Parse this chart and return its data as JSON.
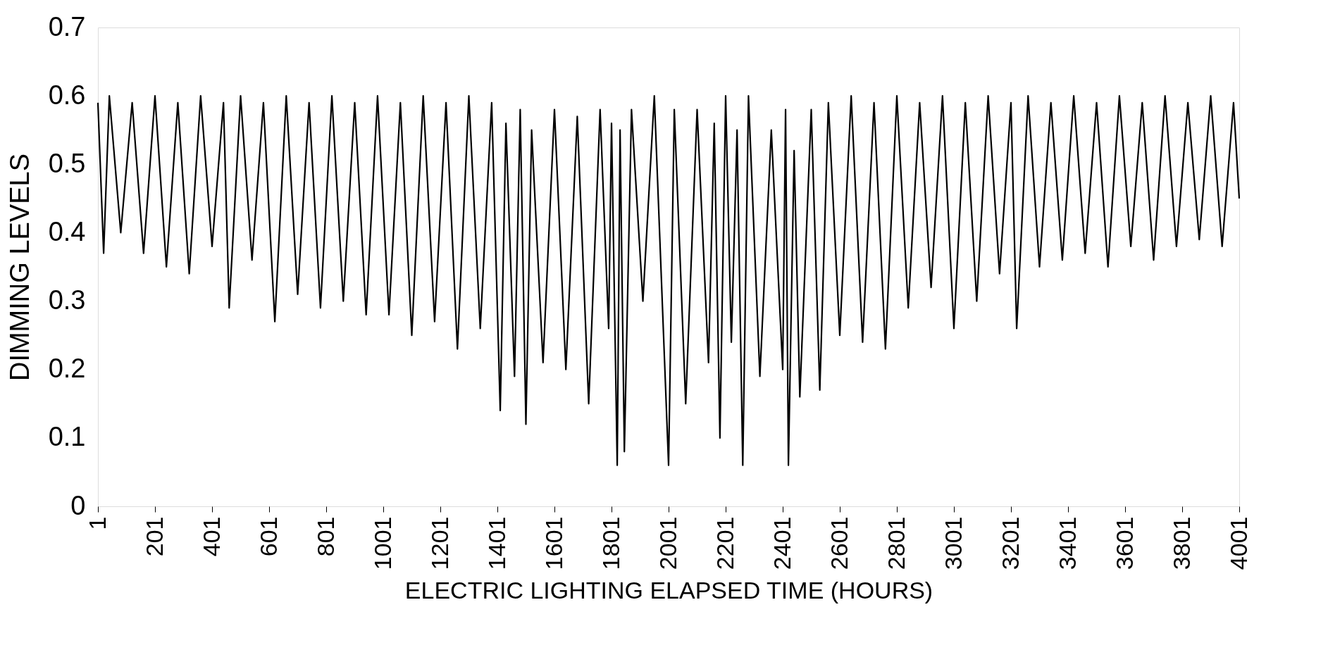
{
  "chart_data": {
    "type": "line",
    "xlabel": "ELECTRIC LIGHTING ELAPSED TIME (HOURS)",
    "ylabel": "DIMMING LEVELS",
    "xlim": [
      1,
      4001
    ],
    "xticks": [
      1,
      201,
      401,
      601,
      801,
      1001,
      1201,
      1401,
      1601,
      1801,
      2001,
      2201,
      2401,
      2601,
      2801,
      3001,
      3201,
      3401,
      3601,
      3801,
      4001
    ],
    "ylim": [
      0,
      0.7
    ],
    "yticks": [
      0,
      0.1,
      0.2,
      0.3,
      0.4,
      0.5,
      0.6,
      0.7
    ],
    "grid": false,
    "marker": "none",
    "line_style": "solid",
    "series": [
      {
        "color": "#000000",
        "x": [
          1,
          21,
          41,
          81,
          121,
          161,
          201,
          241,
          281,
          321,
          361,
          401,
          441,
          461,
          501,
          541,
          581,
          621,
          661,
          701,
          741,
          781,
          821,
          861,
          901,
          941,
          981,
          1021,
          1061,
          1101,
          1141,
          1181,
          1221,
          1261,
          1301,
          1341,
          1381,
          1411,
          1431,
          1461,
          1481,
          1501,
          1521,
          1561,
          1601,
          1641,
          1681,
          1721,
          1761,
          1791,
          1801,
          1821,
          1831,
          1846,
          1871,
          1911,
          1951,
          2001,
          2021,
          2061,
          2101,
          2141,
          2161,
          2181,
          2201,
          2221,
          2241,
          2261,
          2281,
          2321,
          2361,
          2401,
          2411,
          2421,
          2441,
          2461,
          2501,
          2531,
          2561,
          2601,
          2641,
          2681,
          2721,
          2761,
          2801,
          2841,
          2881,
          2921,
          2961,
          3001,
          3041,
          3081,
          3121,
          3161,
          3201,
          3221,
          3261,
          3301,
          3341,
          3381,
          3421,
          3461,
          3501,
          3541,
          3581,
          3621,
          3661,
          3701,
          3741,
          3781,
          3821,
          3861,
          3901,
          3941,
          3981,
          4001
        ],
        "values": [
          0.59,
          0.37,
          0.6,
          0.4,
          0.59,
          0.37,
          0.6,
          0.35,
          0.59,
          0.34,
          0.6,
          0.38,
          0.59,
          0.29,
          0.6,
          0.36,
          0.59,
          0.27,
          0.6,
          0.31,
          0.59,
          0.29,
          0.6,
          0.3,
          0.59,
          0.28,
          0.6,
          0.28,
          0.59,
          0.25,
          0.6,
          0.27,
          0.59,
          0.23,
          0.6,
          0.26,
          0.59,
          0.14,
          0.56,
          0.19,
          0.58,
          0.12,
          0.55,
          0.21,
          0.58,
          0.2,
          0.57,
          0.15,
          0.58,
          0.26,
          0.56,
          0.06,
          0.55,
          0.08,
          0.58,
          0.3,
          0.6,
          0.06,
          0.58,
          0.15,
          0.58,
          0.21,
          0.56,
          0.1,
          0.6,
          0.24,
          0.55,
          0.06,
          0.6,
          0.19,
          0.55,
          0.2,
          0.58,
          0.06,
          0.52,
          0.16,
          0.58,
          0.17,
          0.59,
          0.25,
          0.6,
          0.24,
          0.59,
          0.23,
          0.6,
          0.29,
          0.59,
          0.32,
          0.6,
          0.26,
          0.59,
          0.3,
          0.6,
          0.34,
          0.59,
          0.26,
          0.6,
          0.35,
          0.59,
          0.36,
          0.6,
          0.37,
          0.59,
          0.35,
          0.6,
          0.38,
          0.59,
          0.36,
          0.6,
          0.38,
          0.59,
          0.39,
          0.6,
          0.38,
          0.59,
          0.45
        ]
      }
    ]
  }
}
